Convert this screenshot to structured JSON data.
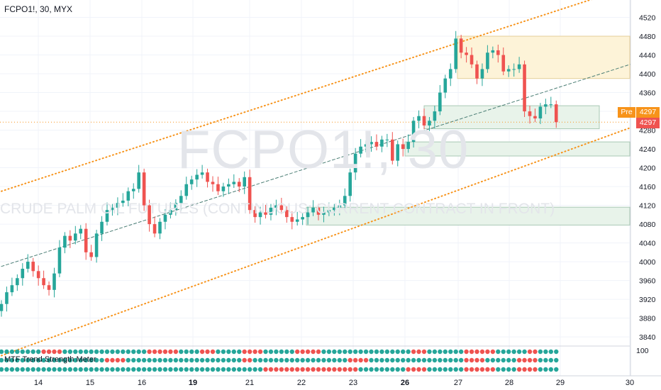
{
  "header": {
    "title": "FCPO1!, 30, MYX"
  },
  "watermark": {
    "symbol": "FCPO1!, 30",
    "description": "CRUDE PALM OIL FUTURES (CONTINUOUS: CURRENT CONTRACT IN FRONT)"
  },
  "price_labels": {
    "pre_tag": "Pre",
    "pre_price": "4297",
    "last_price": "4297"
  },
  "indicator": {
    "name": "MTF Trend Strength Meter",
    "scale_value": "100"
  },
  "colors": {
    "up": "#26a69a",
    "down": "#ef5350",
    "channel": "#f7931a",
    "zone_yellow": "#fdf3d8",
    "zone_green": "#e8f3ea"
  },
  "chart_data": {
    "type": "candlestick",
    "symbol": "FCPO1!",
    "interval": "30",
    "exchange": "MYX",
    "yticks": [
      3840,
      3880,
      3920,
      3960,
      4000,
      4040,
      4080,
      4120,
      4160,
      4200,
      4240,
      4280,
      4320,
      4360,
      4400,
      4440,
      4480,
      4520
    ],
    "yticks_labeled": [
      3840,
      3880,
      3920,
      3960,
      4000,
      4040,
      4080,
      4120,
      4160,
      4200,
      4240,
      4280,
      4360,
      4400,
      4440,
      4480,
      4520
    ],
    "ylim": [
      3822,
      4548
    ],
    "xticks": [
      {
        "label": "14",
        "bold": false
      },
      {
        "label": "15",
        "bold": false
      },
      {
        "label": "16",
        "bold": false
      },
      {
        "label": "19",
        "bold": true
      },
      {
        "label": "21",
        "bold": false
      },
      {
        "label": "22",
        "bold": false
      },
      {
        "label": "23",
        "bold": false
      },
      {
        "label": "26",
        "bold": true
      },
      {
        "label": "27",
        "bold": false
      },
      {
        "label": "28",
        "bold": false
      },
      {
        "label": "29",
        "bold": false
      },
      {
        "label": "30",
        "bold": false
      }
    ],
    "closes": [
      3910,
      3935,
      3950,
      3965,
      3985,
      4000,
      3980,
      3965,
      3950,
      3940,
      3975,
      4030,
      4055,
      4045,
      4060,
      4070,
      4020,
      4010,
      4060,
      4085,
      4110,
      4115,
      4125,
      4130,
      4150,
      4155,
      4190,
      4120,
      4080,
      4060,
      4085,
      4100,
      4110,
      4125,
      4140,
      4165,
      4175,
      4185,
      4190,
      4170,
      4165,
      4150,
      4160,
      4165,
      4170,
      4160,
      4180,
      4110,
      4095,
      4105,
      4100,
      4115,
      4120,
      4110,
      4095,
      4085,
      4090,
      4095,
      4105,
      4115,
      4100,
      4105,
      4110,
      4115,
      4120,
      4140,
      4190,
      4230,
      4245,
      4250,
      4255,
      4245,
      4260,
      4260,
      4215,
      4250,
      4240,
      4255,
      4300,
      4310,
      4290,
      4300,
      4320,
      4360,
      4390,
      4410,
      4475,
      4445,
      4440,
      4420,
      4390,
      4410,
      4445,
      4450,
      4440,
      4405,
      4410,
      4410,
      4420,
      4320,
      4310,
      4305,
      4330,
      4335,
      4335,
      4297
    ],
    "levels": {
      "last_price": 4297,
      "dotted_price_line": 4297
    },
    "zones": [
      {
        "from": 4390,
        "to": 4480,
        "color": "yellow"
      },
      {
        "from": 4283,
        "to": 4332,
        "color": "green"
      },
      {
        "from": 4225,
        "to": 4255,
        "color": "green"
      },
      {
        "from": 4078,
        "to": 4116,
        "color": "green"
      }
    ],
    "channel": {
      "upper": [
        [
          0,
          4150
        ],
        [
          119,
          4585
        ]
      ],
      "lower": [
        [
          0,
          3800
        ],
        [
          119,
          4285
        ]
      ],
      "mid": [
        [
          0,
          3990
        ],
        [
          119,
          4420
        ]
      ]
    },
    "meter_rows": [
      {
        "name": "row1",
        "reds": [
          [
            8,
            11
          ],
          [
            28,
            33
          ],
          [
            38,
            40
          ],
          [
            46,
            49
          ],
          [
            56,
            60
          ],
          [
            78,
            80
          ],
          [
            88,
            93
          ],
          [
            100,
            101
          ]
        ]
      },
      {
        "name": "row2",
        "reds": [
          [
            20,
            23
          ],
          [
            46,
            47
          ],
          [
            66,
            69
          ],
          [
            88,
            91
          ],
          [
            98,
            101
          ]
        ]
      },
      {
        "name": "row3",
        "reds": [
          [
            50,
            67
          ],
          [
            77,
            80
          ],
          [
            88,
            93
          ],
          [
            98,
            101
          ]
        ]
      }
    ]
  }
}
